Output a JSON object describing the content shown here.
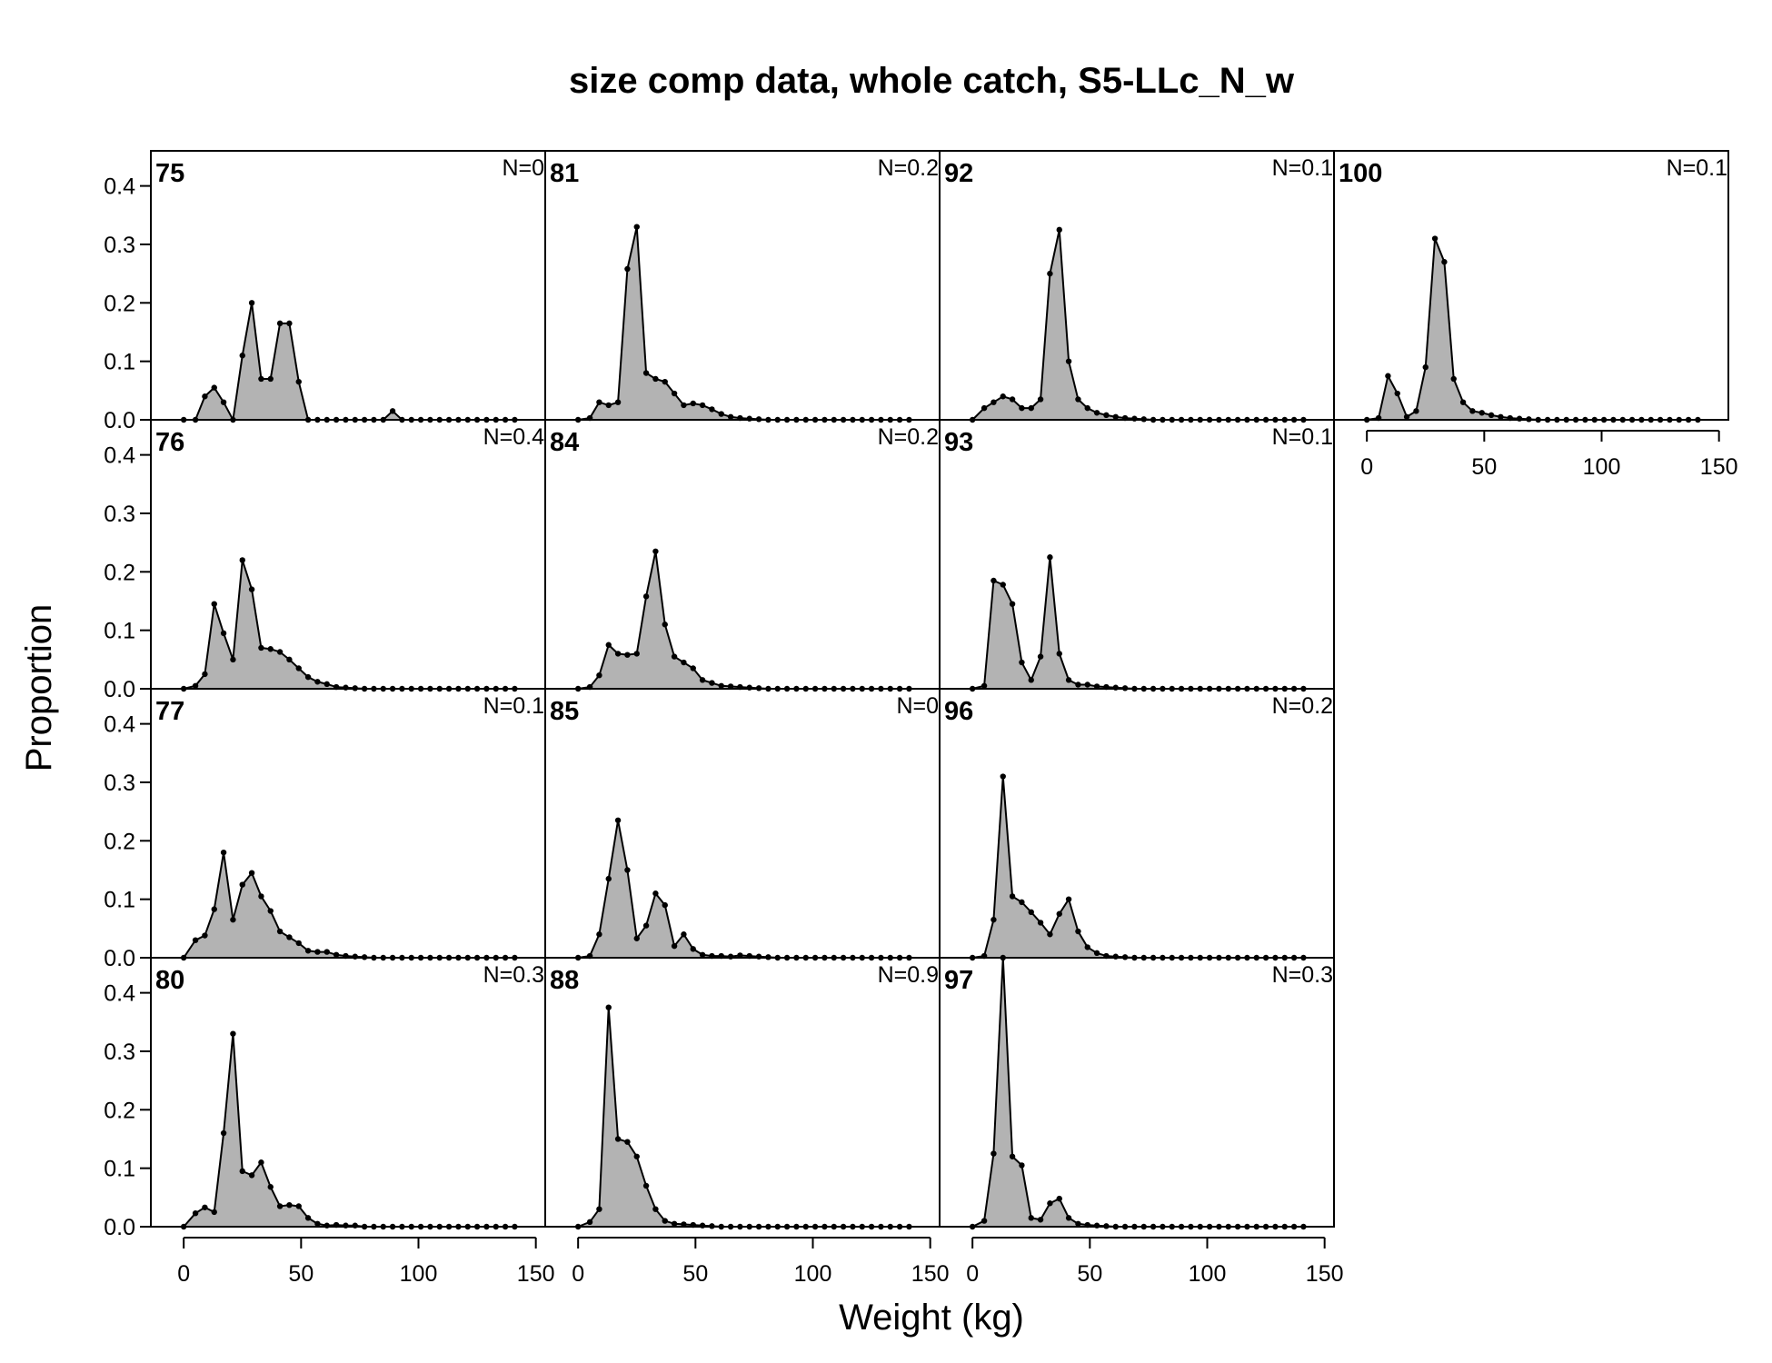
{
  "chart_data": {
    "type": "area",
    "title": "size comp data, whole catch, S5-LLc_N_w",
    "xlabel": "Weight (kg)",
    "ylabel": "Proportion",
    "xlim": [
      -14,
      154
    ],
    "ylim": [
      0,
      0.46
    ],
    "x_ticks": [
      0,
      50,
      100,
      150
    ],
    "y_ticks": [
      0.0,
      0.1,
      0.2,
      0.3,
      0.4
    ],
    "x_tick_labels": [
      "0",
      "50",
      "100",
      "150"
    ],
    "y_tick_labels": [
      "0.0",
      "0.1",
      "0.2",
      "0.3",
      "0.4"
    ],
    "bins": [
      0,
      5,
      9,
      13,
      17,
      21,
      25,
      29,
      33,
      37,
      41,
      45,
      49,
      53,
      57,
      61,
      65,
      69,
      73,
      77,
      81,
      85,
      89,
      93,
      97,
      101,
      105,
      109,
      113,
      117,
      121,
      125,
      129,
      133,
      137,
      141
    ],
    "layout": "4 rows x 4 columns, filled by column",
    "panels": [
      {
        "label": "75",
        "n": "N=0",
        "values": [
          0,
          0,
          0.04,
          0.055,
          0.03,
          0,
          0.11,
          0.2,
          0.07,
          0.07,
          0.165,
          0.165,
          0.065,
          0,
          0,
          0,
          0,
          0,
          0,
          0,
          0,
          0,
          0.015,
          0,
          0,
          0,
          0,
          0,
          0,
          0,
          0,
          0,
          0,
          0,
          0,
          0
        ]
      },
      {
        "label": "76",
        "n": "N=0.4",
        "values": [
          0,
          0.005,
          0.025,
          0.145,
          0.095,
          0.05,
          0.22,
          0.17,
          0.07,
          0.068,
          0.063,
          0.05,
          0.035,
          0.02,
          0.012,
          0.008,
          0.003,
          0.002,
          0.001,
          0,
          0,
          0,
          0,
          0,
          0,
          0,
          0,
          0,
          0,
          0,
          0,
          0,
          0,
          0,
          0,
          0
        ]
      },
      {
        "label": "77",
        "n": "N=0.1",
        "values": [
          0,
          0.03,
          0.038,
          0.083,
          0.18,
          0.065,
          0.125,
          0.145,
          0.105,
          0.08,
          0.045,
          0.035,
          0.025,
          0.012,
          0.01,
          0.01,
          0.005,
          0.003,
          0.002,
          0.001,
          0,
          0,
          0,
          0,
          0,
          0,
          0,
          0,
          0,
          0,
          0,
          0,
          0,
          0,
          0,
          0
        ]
      },
      {
        "label": "80",
        "n": "N=0.3",
        "values": [
          0,
          0.023,
          0.033,
          0.025,
          0.16,
          0.33,
          0.095,
          0.088,
          0.11,
          0.068,
          0.035,
          0.037,
          0.035,
          0.015,
          0.005,
          0.002,
          0.003,
          0.002,
          0.002,
          0,
          0,
          0,
          0,
          0,
          0,
          0,
          0,
          0,
          0,
          0,
          0,
          0,
          0,
          0,
          0,
          0
        ]
      },
      {
        "label": "81",
        "n": "N=0.2",
        "values": [
          0,
          0.003,
          0.03,
          0.025,
          0.03,
          0.258,
          0.33,
          0.08,
          0.07,
          0.065,
          0.045,
          0.025,
          0.028,
          0.025,
          0.018,
          0.01,
          0.005,
          0.003,
          0.002,
          0.001,
          0,
          0,
          0,
          0,
          0,
          0,
          0,
          0,
          0,
          0,
          0,
          0,
          0,
          0,
          0,
          0
        ]
      },
      {
        "label": "84",
        "n": "N=0.2",
        "values": [
          0,
          0.003,
          0.023,
          0.075,
          0.06,
          0.058,
          0.06,
          0.158,
          0.235,
          0.11,
          0.055,
          0.045,
          0.035,
          0.015,
          0.01,
          0.005,
          0.004,
          0.003,
          0.002,
          0.001,
          0,
          0,
          0,
          0,
          0,
          0,
          0,
          0,
          0,
          0,
          0,
          0,
          0,
          0,
          0,
          0
        ]
      },
      {
        "label": "85",
        "n": "N=0",
        "values": [
          0,
          0.003,
          0.04,
          0.135,
          0.235,
          0.15,
          0.033,
          0.055,
          0.11,
          0.09,
          0.02,
          0.04,
          0.015,
          0.005,
          0.003,
          0.003,
          0.002,
          0.004,
          0.003,
          0.002,
          0.001,
          0,
          0,
          0,
          0,
          0,
          0,
          0,
          0,
          0,
          0,
          0,
          0,
          0,
          0,
          0
        ]
      },
      {
        "label": "88",
        "n": "N=0.9",
        "values": [
          0,
          0.008,
          0.03,
          0.375,
          0.15,
          0.145,
          0.12,
          0.07,
          0.03,
          0.01,
          0.005,
          0.004,
          0.003,
          0.002,
          0.001,
          0,
          0,
          0,
          0,
          0,
          0,
          0,
          0,
          0,
          0,
          0,
          0,
          0,
          0,
          0,
          0,
          0,
          0,
          0,
          0,
          0
        ]
      },
      {
        "label": "92",
        "n": "N=0.1",
        "values": [
          0,
          0.02,
          0.03,
          0.04,
          0.035,
          0.02,
          0.02,
          0.035,
          0.25,
          0.325,
          0.1,
          0.035,
          0.02,
          0.012,
          0.008,
          0.005,
          0.003,
          0.002,
          0.001,
          0,
          0,
          0,
          0,
          0,
          0,
          0,
          0,
          0,
          0,
          0,
          0,
          0,
          0,
          0,
          0,
          0
        ]
      },
      {
        "label": "93",
        "n": "N=0.1",
        "values": [
          0,
          0.005,
          0.185,
          0.178,
          0.145,
          0.045,
          0.015,
          0.055,
          0.225,
          0.06,
          0.015,
          0.007,
          0.007,
          0.004,
          0.003,
          0.002,
          0.001,
          0,
          0,
          0,
          0,
          0,
          0,
          0,
          0,
          0,
          0,
          0,
          0,
          0,
          0,
          0,
          0,
          0,
          0,
          0
        ]
      },
      {
        "label": "96",
        "n": "N=0.2",
        "values": [
          0,
          0.003,
          0.065,
          0.31,
          0.105,
          0.095,
          0.078,
          0.06,
          0.04,
          0.075,
          0.1,
          0.045,
          0.018,
          0.008,
          0.003,
          0.002,
          0.001,
          0,
          0,
          0,
          0,
          0,
          0,
          0,
          0,
          0,
          0,
          0,
          0,
          0,
          0,
          0,
          0,
          0,
          0,
          0
        ]
      },
      {
        "label": "97",
        "n": "N=0.3",
        "values": [
          0,
          0.01,
          0.125,
          0.46,
          0.12,
          0.105,
          0.015,
          0.012,
          0.04,
          0.048,
          0.015,
          0.005,
          0.003,
          0.002,
          0.001,
          0,
          0,
          0,
          0,
          0,
          0,
          0,
          0,
          0,
          0,
          0,
          0,
          0,
          0,
          0,
          0,
          0,
          0,
          0,
          0,
          0
        ]
      },
      {
        "label": "100",
        "n": "N=0.1",
        "values": [
          0,
          0.003,
          0.075,
          0.045,
          0.005,
          0.015,
          0.09,
          0.31,
          0.27,
          0.07,
          0.03,
          0.015,
          0.012,
          0.008,
          0.005,
          0.003,
          0.002,
          0.001,
          0,
          0,
          0,
          0,
          0,
          0,
          0,
          0,
          0,
          0,
          0,
          0,
          0,
          0,
          0,
          0,
          0,
          0
        ]
      }
    ]
  }
}
